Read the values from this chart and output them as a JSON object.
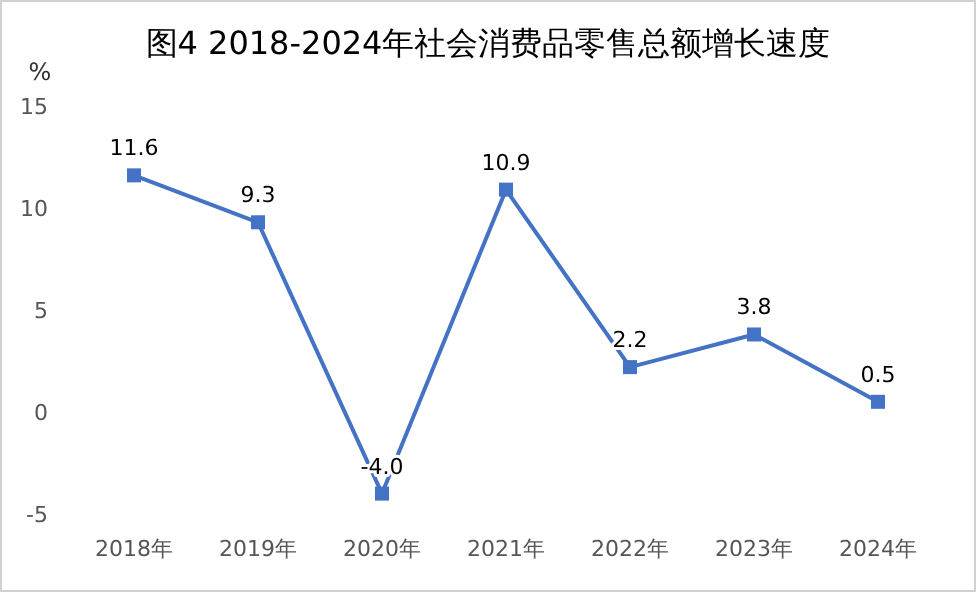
{
  "chart_data": {
    "type": "line",
    "title": "图4 2018-2024年社会消费品零售总额增长速度",
    "ylabel": "%",
    "categories": [
      "2018年",
      "2019年",
      "2020年",
      "2021年",
      "2022年",
      "2023年",
      "2024年"
    ],
    "series": [
      {
        "color": "#4472c4",
        "values": [
          11.6,
          9.3,
          -4.0,
          10.9,
          2.2,
          3.8,
          0.5
        ],
        "value_labels": [
          "11.6",
          "9.3",
          "-4.0",
          "10.9",
          "2.2",
          "3.8",
          "0.5"
        ]
      }
    ],
    "ylim": [
      -5,
      15
    ],
    "yticks": [
      -5,
      0,
      5,
      10,
      15
    ],
    "marker": "square"
  }
}
